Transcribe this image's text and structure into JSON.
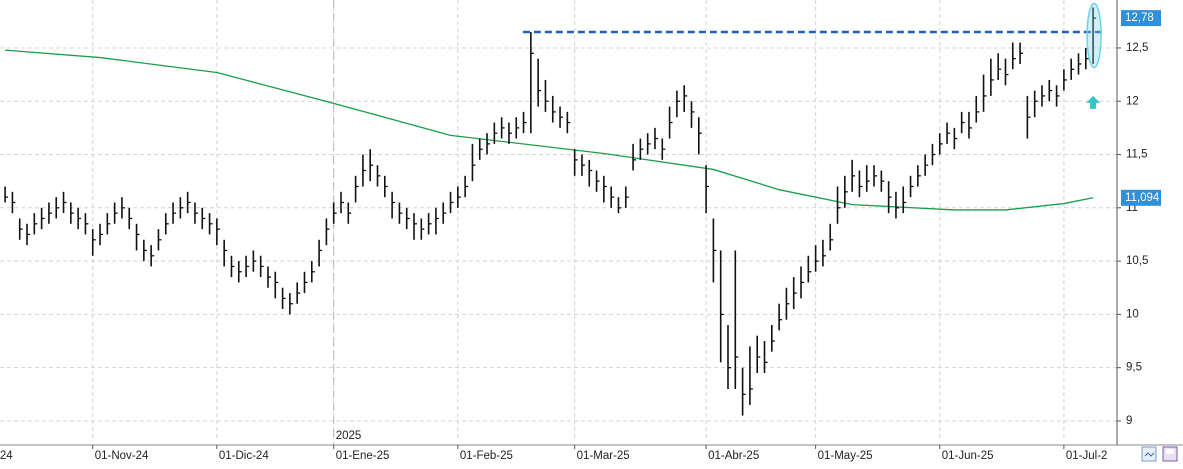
{
  "chart_data": {
    "type": "ohlc",
    "xlim": [
      -0.7,
      152
    ],
    "ylim": [
      8.84,
      12.95
    ],
    "yticks": [
      {
        "value": 9,
        "label": "9"
      },
      {
        "value": 9.5,
        "label": "9,5"
      },
      {
        "value": 10,
        "label": "10"
      },
      {
        "value": 10.5,
        "label": "10,5"
      },
      {
        "value": 11,
        "label": "11"
      },
      {
        "value": 11.5,
        "label": "11,5"
      },
      {
        "value": 12,
        "label": "12"
      },
      {
        "value": 12.5,
        "label": "12,5"
      }
    ],
    "xticks": [
      {
        "value": -1,
        "label": "24"
      },
      {
        "value": 12,
        "label": "01-Nov-24"
      },
      {
        "value": 29,
        "label": "01-Dic-24"
      },
      {
        "value": 45,
        "label": "01-Ene-25"
      },
      {
        "value": 62,
        "label": "01-Feb-25"
      },
      {
        "value": 78,
        "label": "01-Mar-25"
      },
      {
        "value": 96,
        "label": "01-Abr-25"
      },
      {
        "value": 111,
        "label": "01-May-25"
      },
      {
        "value": 128,
        "label": "01-Jun-25"
      },
      {
        "value": 145,
        "label": "01-Jul-2"
      }
    ],
    "grid": true,
    "year_marker": {
      "value": 45,
      "label": "2025"
    },
    "bar_color": "#111111",
    "high": [
      11.2,
      11.15,
      10.9,
      10.85,
      10.95,
      11.0,
      11.05,
      11.1,
      11.15,
      11.05,
      11.0,
      10.95,
      10.8,
      10.85,
      10.95,
      11.05,
      11.1,
      11.0,
      10.85,
      10.7,
      10.65,
      10.8,
      10.95,
      11.05,
      11.1,
      11.15,
      11.05,
      11.0,
      10.95,
      10.9,
      10.7,
      10.55,
      10.5,
      10.55,
      10.6,
      10.55,
      10.45,
      10.4,
      10.25,
      10.2,
      10.3,
      10.4,
      10.5,
      10.7,
      10.9,
      11.05,
      11.15,
      11.05,
      11.3,
      11.5,
      11.55,
      11.4,
      11.3,
      11.15,
      11.05,
      11.0,
      10.95,
      10.9,
      10.95,
      11.0,
      11.05,
      11.15,
      11.2,
      11.3,
      11.6,
      11.65,
      11.7,
      11.8,
      11.85,
      11.8,
      11.85,
      11.9,
      12.65,
      12.4,
      12.2,
      12.05,
      11.95,
      11.9,
      11.55,
      11.5,
      11.45,
      11.35,
      11.3,
      11.2,
      11.1,
      11.2,
      11.6,
      11.65,
      11.7,
      11.75,
      11.65,
      11.95,
      12.1,
      12.15,
      12.0,
      11.85,
      11.4,
      10.9,
      10.6,
      9.9,
      10.6,
      9.5,
      9.7,
      9.8,
      9.75,
      9.9,
      10.1,
      10.25,
      10.35,
      10.45,
      10.55,
      10.65,
      10.7,
      10.85,
      11.2,
      11.3,
      11.45,
      11.35,
      11.4,
      11.4,
      11.35,
      11.25,
      11.15,
      11.2,
      11.3,
      11.4,
      11.5,
      11.6,
      11.7,
      11.8,
      11.75,
      11.9,
      11.9,
      12.05,
      12.25,
      12.4,
      12.45,
      12.4,
      12.55,
      12.55,
      12.05,
      12.1,
      12.15,
      12.2,
      12.15,
      12.3,
      12.4,
      12.45,
      12.5,
      12.88
    ],
    "low": [
      11.05,
      10.95,
      10.7,
      10.65,
      10.75,
      10.8,
      10.85,
      10.9,
      10.95,
      10.85,
      10.8,
      10.75,
      10.55,
      10.65,
      10.75,
      10.85,
      10.9,
      10.8,
      10.6,
      10.5,
      10.45,
      10.6,
      10.75,
      10.85,
      10.9,
      10.95,
      10.85,
      10.8,
      10.75,
      10.65,
      10.45,
      10.35,
      10.3,
      10.35,
      10.4,
      10.35,
      10.25,
      10.15,
      10.05,
      10.0,
      10.1,
      10.2,
      10.3,
      10.45,
      10.65,
      10.85,
      10.95,
      10.85,
      11.05,
      11.2,
      11.25,
      11.2,
      11.1,
      10.9,
      10.85,
      10.8,
      10.7,
      10.7,
      10.75,
      10.75,
      10.85,
      10.95,
      11.0,
      11.1,
      11.25,
      11.45,
      11.5,
      11.6,
      11.65,
      11.6,
      11.65,
      11.7,
      11.7,
      11.95,
      11.9,
      11.8,
      11.75,
      11.7,
      11.3,
      11.3,
      11.2,
      11.15,
      11.05,
      11.0,
      10.95,
      11.0,
      11.35,
      11.45,
      11.5,
      11.55,
      11.45,
      11.65,
      11.85,
      11.9,
      11.75,
      11.5,
      10.95,
      10.3,
      9.55,
      9.3,
      9.3,
      9.05,
      9.15,
      9.45,
      9.45,
      9.65,
      9.85,
      9.95,
      10.05,
      10.15,
      10.3,
      10.4,
      10.45,
      10.6,
      10.85,
      11.0,
      11.15,
      11.1,
      11.15,
      11.2,
      11.15,
      10.95,
      10.9,
      10.95,
      11.1,
      11.2,
      11.3,
      11.4,
      11.5,
      11.6,
      11.55,
      11.7,
      11.65,
      11.8,
      11.9,
      12.05,
      12.2,
      12.15,
      12.3,
      12.35,
      11.65,
      11.85,
      11.95,
      12.0,
      11.95,
      12.1,
      12.2,
      12.25,
      12.3,
      12.35
    ],
    "close": [
      11.1,
      11.05,
      10.8,
      10.75,
      10.85,
      10.9,
      10.95,
      11.0,
      11.05,
      10.95,
      10.9,
      10.85,
      10.7,
      10.75,
      10.85,
      10.95,
      11.0,
      10.9,
      10.75,
      10.6,
      10.55,
      10.7,
      10.85,
      10.95,
      11.0,
      11.05,
      10.95,
      10.9,
      10.85,
      10.8,
      10.6,
      10.45,
      10.4,
      10.45,
      10.5,
      10.45,
      10.35,
      10.3,
      10.15,
      10.1,
      10.2,
      10.3,
      10.4,
      10.6,
      10.8,
      10.95,
      11.05,
      10.95,
      11.2,
      11.35,
      11.4,
      11.3,
      11.2,
      11.05,
      10.95,
      10.9,
      10.85,
      10.8,
      10.85,
      10.9,
      10.95,
      11.05,
      11.1,
      11.2,
      11.4,
      11.55,
      11.6,
      11.7,
      11.75,
      11.7,
      11.75,
      11.8,
      12.45,
      12.1,
      12.0,
      11.9,
      11.85,
      11.8,
      11.45,
      11.4,
      11.35,
      11.25,
      11.2,
      11.1,
      11.0,
      11.1,
      11.45,
      11.55,
      11.6,
      11.65,
      11.55,
      11.8,
      12.0,
      12.05,
      11.9,
      11.7,
      11.2,
      10.6,
      10.0,
      9.5,
      9.6,
      9.25,
      9.3,
      9.6,
      9.55,
      9.75,
      9.95,
      10.1,
      10.2,
      10.3,
      10.4,
      10.5,
      10.55,
      10.7,
      11.0,
      11.15,
      11.3,
      11.2,
      11.25,
      11.3,
      11.25,
      11.1,
      11.0,
      11.05,
      11.2,
      11.3,
      11.4,
      11.5,
      11.6,
      11.7,
      11.65,
      11.8,
      11.75,
      11.9,
      12.05,
      12.2,
      12.3,
      12.25,
      12.4,
      12.45,
      11.85,
      12.0,
      12.05,
      12.1,
      12.05,
      12.2,
      12.3,
      12.35,
      12.4,
      12.78
    ],
    "moving_average": {
      "color": "#1a9e4a",
      "x": [
        0,
        13,
        29,
        45,
        61,
        82,
        97,
        106,
        116,
        130,
        137,
        145,
        149
      ],
      "values": [
        12.48,
        12.41,
        12.27,
        11.98,
        11.68,
        11.51,
        11.36,
        11.17,
        11.03,
        10.98,
        10.98,
        11.04,
        11.094
      ]
    },
    "last_price": {
      "value": 12.78,
      "label": "12,78",
      "color": "#2f8fd8"
    },
    "ma_last": {
      "value": 11.094,
      "label": "11,094",
      "color": "#2f8fd8"
    },
    "resistance": {
      "value": 12.65,
      "from": 72,
      "to": 149,
      "color": "#1f5fbf"
    }
  }
}
